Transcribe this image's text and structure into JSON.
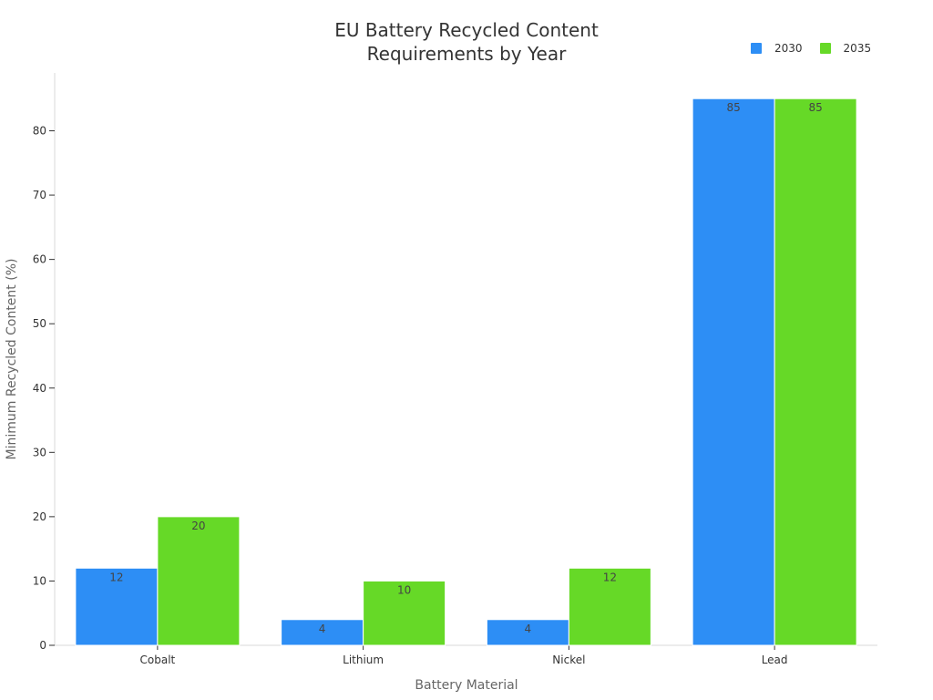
{
  "chart_data": {
    "type": "bar",
    "title": "EU Battery Recycled Content Requirements by Year",
    "title_lines": [
      "EU Battery Recycled Content",
      "Requirements by Year"
    ],
    "xlabel": "Battery Material",
    "ylabel": "Minimum Recycled Content (%)",
    "categories": [
      "Cobalt",
      "Lithium",
      "Nickel",
      "Lead"
    ],
    "series": [
      {
        "name": "2030",
        "values": [
          12,
          4,
          4,
          85
        ],
        "color": "#2d8ef5"
      },
      {
        "name": "2035",
        "values": [
          20,
          10,
          12,
          85
        ],
        "color": "#66d927"
      }
    ],
    "ylim": [
      0,
      89
    ],
    "yticks": [
      0,
      10,
      20,
      30,
      40,
      50,
      60,
      70,
      80
    ],
    "legend_position": "top-right",
    "grid": false,
    "data_labels": true
  }
}
